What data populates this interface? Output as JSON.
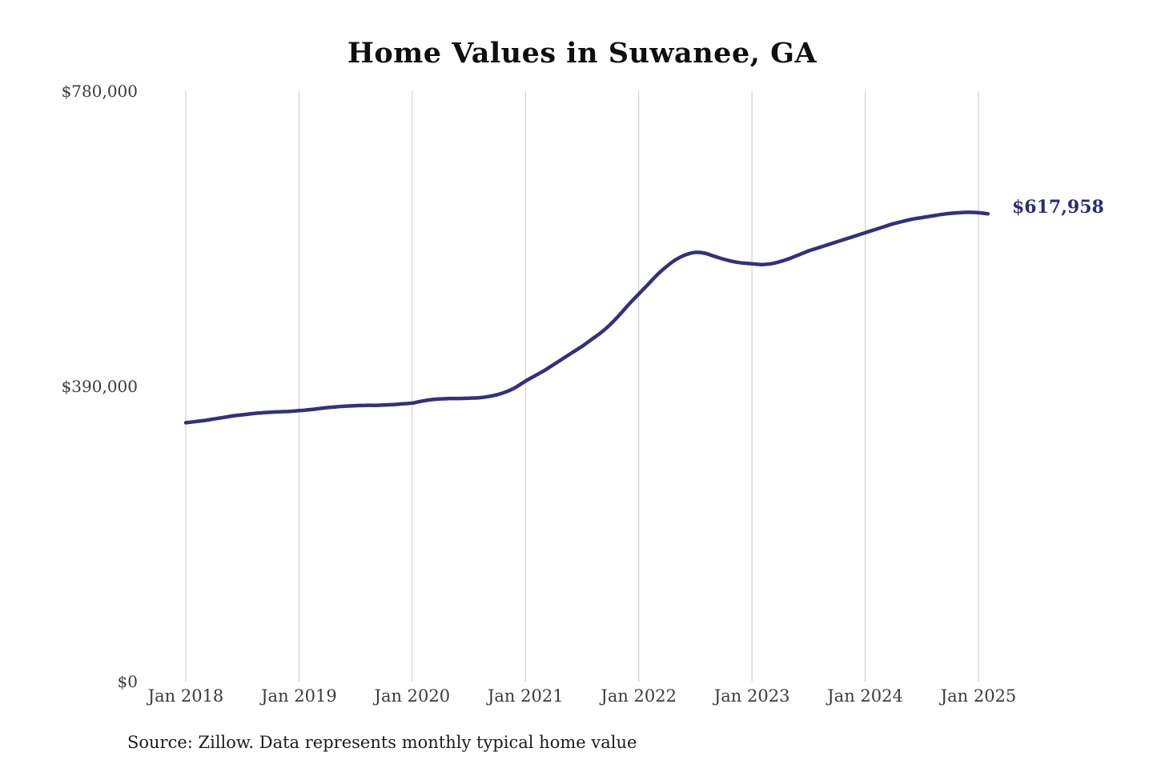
{
  "chart_data": {
    "type": "line",
    "title": "Home Values in Suwanee, GA",
    "xlabel": "",
    "ylabel": "",
    "ylim": [
      0,
      780000
    ],
    "y_ticks": [
      0,
      390000,
      780000
    ],
    "y_tick_labels": [
      "$0",
      "$390,000",
      "$780,000"
    ],
    "x_tick_labels": [
      "Jan 2018",
      "Jan 2019",
      "Jan 2020",
      "Jan 2021",
      "Jan 2022",
      "Jan 2023",
      "Jan 2024",
      "Jan 2025"
    ],
    "grid": "vertical-only",
    "legend": "none",
    "line_color": "#34307d",
    "grid_color": "#c8c8c8",
    "end_annotation": {
      "text": "$617,958",
      "value": 617958
    },
    "source_note": "Source: Zillow. Data represents monthly typical home value",
    "series": [
      {
        "name": "Monthly typical home value",
        "start": "Jan 2018",
        "frequency": "monthly",
        "values": [
          342000,
          343500,
          345000,
          347000,
          349000,
          351000,
          352500,
          354000,
          355000,
          356000,
          356500,
          357000,
          358000,
          359000,
          360500,
          362000,
          363000,
          364000,
          364500,
          365000,
          365000,
          365500,
          366000,
          367000,
          368000,
          370500,
          372500,
          373500,
          374000,
          374000,
          374500,
          375000,
          376500,
          379000,
          383000,
          389000,
          397000,
          404000,
          411000,
          419000,
          427000,
          435000,
          443000,
          452000,
          461000,
          472000,
          485000,
          499000,
          512000,
          525000,
          538000,
          549000,
          558000,
          564000,
          567000,
          566000,
          562000,
          558000,
          555000,
          553000,
          552000,
          551000,
          552000,
          555000,
          559000,
          564000,
          569000,
          573000,
          577000,
          581000,
          585000,
          589000,
          593000,
          597000,
          601000,
          605000,
          608000,
          611000,
          613000,
          615000,
          617000,
          618500,
          619500,
          620000,
          619500,
          617958
        ]
      }
    ]
  }
}
